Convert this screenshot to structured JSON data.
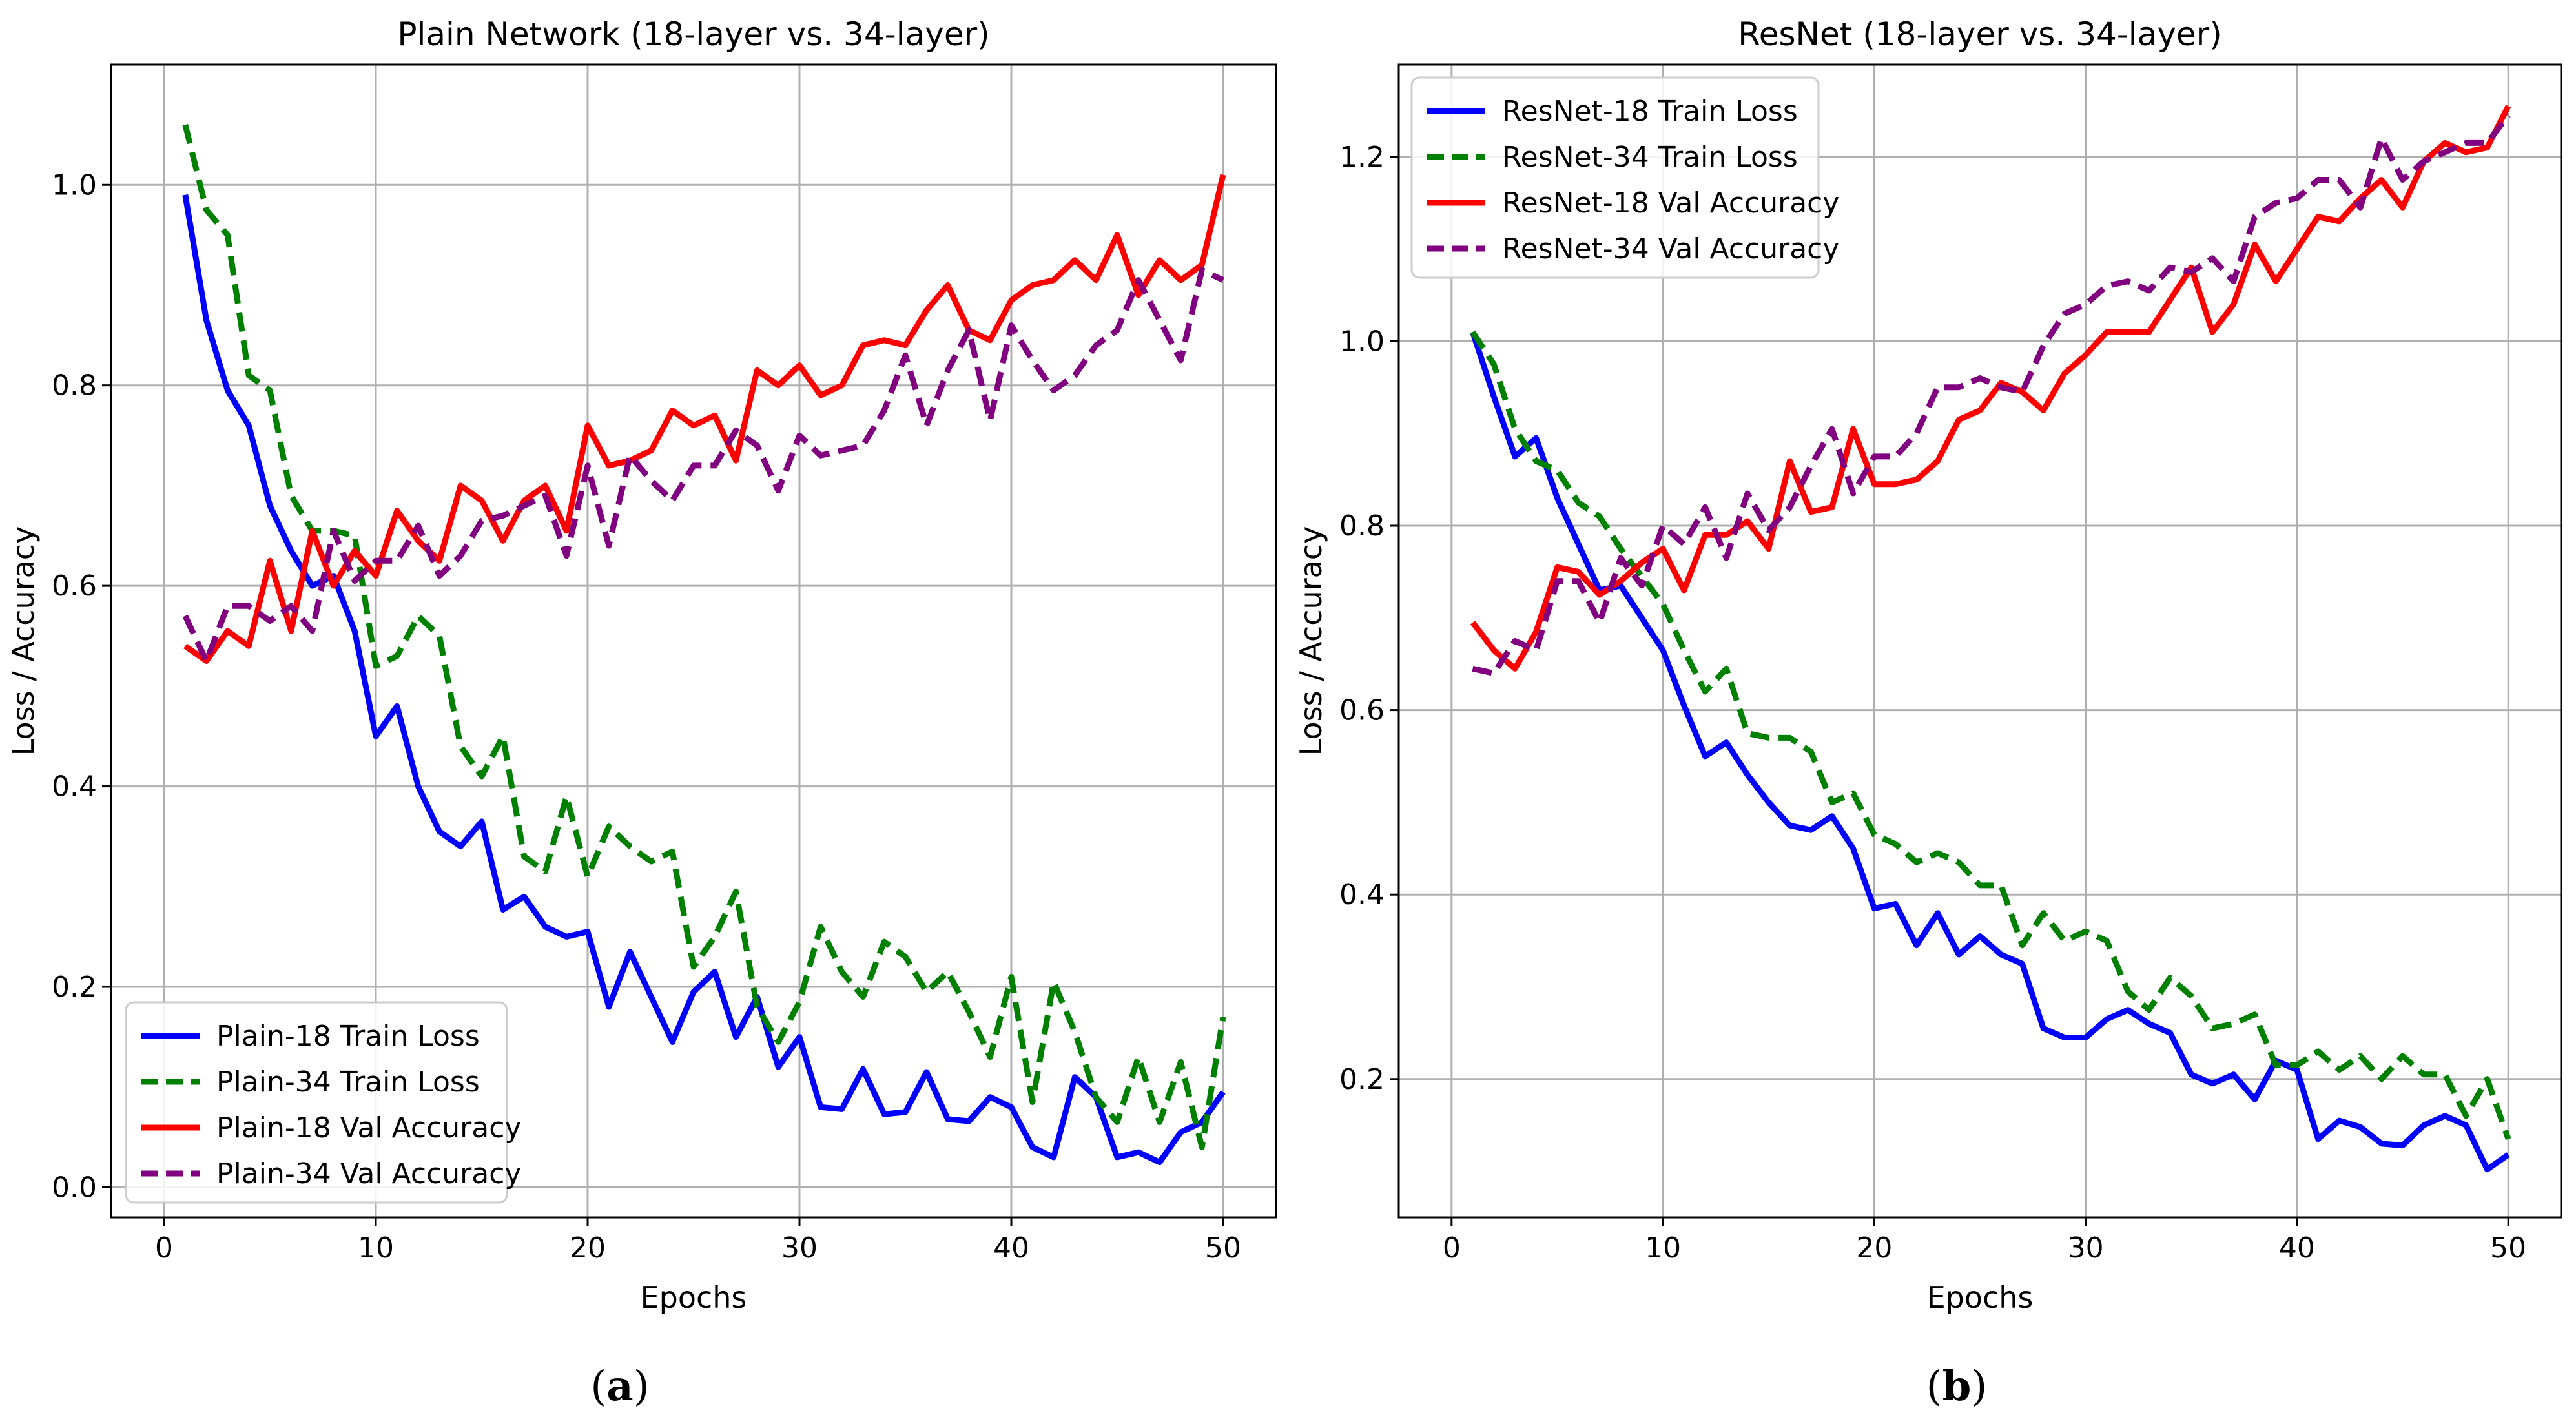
{
  "colors": {
    "plain18_train": "#0000ff",
    "plain34_train": "#008000",
    "plain18_val": "#ff0000",
    "plain34_val": "#800080",
    "grid": "#b0b0b0",
    "axis": "#000000"
  },
  "captions": [
    "a",
    "b"
  ],
  "chart_data": [
    {
      "type": "line",
      "title": "Plain Network (18-layer vs. 34-layer)",
      "xlabel": "Epochs",
      "ylabel": "Loss / Accuracy",
      "xlim": [
        -2.5,
        52.5
      ],
      "ylim": [
        -0.03,
        1.12
      ],
      "xticks": [
        0,
        10,
        20,
        30,
        40,
        50
      ],
      "yticks": [
        0.0,
        0.2,
        0.4,
        0.6,
        0.8,
        1.0
      ],
      "ytick_labels": [
        "0.0",
        "0.2",
        "0.4",
        "0.6",
        "0.8",
        "1.0"
      ],
      "grid": true,
      "legend_position": "lower-left",
      "x": [
        1,
        2,
        3,
        4,
        5,
        6,
        7,
        8,
        9,
        10,
        11,
        12,
        13,
        14,
        15,
        16,
        17,
        18,
        19,
        20,
        21,
        22,
        23,
        24,
        25,
        26,
        27,
        28,
        29,
        30,
        31,
        32,
        33,
        34,
        35,
        36,
        37,
        38,
        39,
        40,
        41,
        42,
        43,
        44,
        45,
        46,
        47,
        48,
        49,
        50
      ],
      "series": [
        {
          "name": "Plain-18 Train Loss",
          "color_key": "plain18_train",
          "dash": false,
          "values": [
            0.99,
            0.865,
            0.795,
            0.76,
            0.68,
            0.635,
            0.6,
            0.61,
            0.555,
            0.45,
            0.48,
            0.4,
            0.355,
            0.34,
            0.365,
            0.277,
            0.29,
            0.26,
            0.25,
            0.255,
            0.18,
            0.235,
            0.19,
            0.145,
            0.195,
            0.215,
            0.15,
            0.19,
            0.12,
            0.15,
            0.08,
            0.078,
            0.118,
            0.073,
            0.075,
            0.115,
            0.068,
            0.066,
            0.09,
            0.08,
            0.04,
            0.03,
            0.11,
            0.09,
            0.03,
            0.035,
            0.025,
            0.055,
            0.065,
            0.095
          ]
        },
        {
          "name": "Plain-34 Train Loss",
          "color_key": "plain34_train",
          "dash": true,
          "values": [
            1.06,
            0.975,
            0.95,
            0.81,
            0.795,
            0.69,
            0.655,
            0.655,
            0.65,
            0.52,
            0.53,
            0.57,
            0.55,
            0.44,
            0.41,
            0.45,
            0.33,
            0.315,
            0.39,
            0.31,
            0.36,
            0.34,
            0.325,
            0.335,
            0.22,
            0.25,
            0.295,
            0.18,
            0.145,
            0.185,
            0.26,
            0.215,
            0.19,
            0.245,
            0.23,
            0.195,
            0.215,
            0.175,
            0.13,
            0.21,
            0.085,
            0.205,
            0.155,
            0.09,
            0.065,
            0.13,
            0.065,
            0.125,
            0.04,
            0.17
          ]
        },
        {
          "name": "Plain-18 Val Accuracy",
          "color_key": "plain18_val",
          "dash": false,
          "values": [
            0.54,
            0.525,
            0.555,
            0.54,
            0.625,
            0.555,
            0.655,
            0.6,
            0.635,
            0.61,
            0.675,
            0.645,
            0.625,
            0.7,
            0.685,
            0.645,
            0.685,
            0.7,
            0.655,
            0.76,
            0.72,
            0.725,
            0.735,
            0.775,
            0.76,
            0.77,
            0.725,
            0.815,
            0.8,
            0.82,
            0.79,
            0.8,
            0.84,
            0.845,
            0.84,
            0.875,
            0.9,
            0.855,
            0.845,
            0.885,
            0.9,
            0.905,
            0.925,
            0.905,
            0.95,
            0.89,
            0.925,
            0.905,
            0.92,
            1.01
          ]
        },
        {
          "name": "Plain-34 Val Accuracy",
          "color_key": "plain34_val",
          "dash": true,
          "values": [
            0.57,
            0.525,
            0.58,
            0.58,
            0.565,
            0.58,
            0.555,
            0.655,
            0.605,
            0.625,
            0.625,
            0.66,
            0.61,
            0.63,
            0.665,
            0.67,
            0.68,
            0.69,
            0.63,
            0.72,
            0.64,
            0.73,
            0.705,
            0.685,
            0.72,
            0.72,
            0.755,
            0.74,
            0.695,
            0.75,
            0.73,
            0.735,
            0.74,
            0.775,
            0.83,
            0.76,
            0.815,
            0.855,
            0.765,
            0.86,
            0.825,
            0.795,
            0.81,
            0.84,
            0.855,
            0.905,
            0.865,
            0.825,
            0.915,
            0.905
          ]
        }
      ]
    },
    {
      "type": "line",
      "title": "ResNet (18-layer vs. 34-layer)",
      "xlabel": "Epochs",
      "ylabel": "Loss / Accuracy",
      "xlim": [
        -2.5,
        52.5
      ],
      "ylim": [
        0.05,
        1.3
      ],
      "xticks": [
        0,
        10,
        20,
        30,
        40,
        50
      ],
      "yticks": [
        0.2,
        0.4,
        0.6,
        0.8,
        1.0,
        1.2
      ],
      "ytick_labels": [
        "0.2",
        "0.4",
        "0.6",
        "0.8",
        "1.0",
        "1.2"
      ],
      "grid": true,
      "legend_position": "upper-left",
      "x": [
        1,
        2,
        3,
        4,
        5,
        6,
        7,
        8,
        9,
        10,
        11,
        12,
        13,
        14,
        15,
        16,
        17,
        18,
        19,
        20,
        21,
        22,
        23,
        24,
        25,
        26,
        27,
        28,
        29,
        30,
        31,
        32,
        33,
        34,
        35,
        36,
        37,
        38,
        39,
        40,
        41,
        42,
        43,
        44,
        45,
        46,
        47,
        48,
        49,
        50
      ],
      "series": [
        {
          "name": "ResNet-18 Train Loss",
          "color_key": "plain18_train",
          "dash": false,
          "values": [
            1.01,
            0.94,
            0.875,
            0.895,
            0.83,
            0.78,
            0.73,
            0.735,
            0.7,
            0.665,
            0.605,
            0.55,
            0.565,
            0.53,
            0.5,
            0.475,
            0.47,
            0.485,
            0.45,
            0.385,
            0.39,
            0.345,
            0.38,
            0.335,
            0.355,
            0.335,
            0.325,
            0.255,
            0.245,
            0.245,
            0.265,
            0.275,
            0.26,
            0.25,
            0.205,
            0.195,
            0.205,
            0.178,
            0.22,
            0.21,
            0.135,
            0.155,
            0.148,
            0.13,
            0.128,
            0.15,
            0.16,
            0.15,
            0.102,
            0.118
          ]
        },
        {
          "name": "ResNet-34 Train Loss",
          "color_key": "plain34_train",
          "dash": true,
          "values": [
            1.01,
            0.975,
            0.905,
            0.87,
            0.86,
            0.825,
            0.81,
            0.775,
            0.745,
            0.715,
            0.665,
            0.62,
            0.645,
            0.575,
            0.57,
            0.57,
            0.555,
            0.5,
            0.51,
            0.465,
            0.455,
            0.435,
            0.445,
            0.435,
            0.41,
            0.41,
            0.345,
            0.38,
            0.35,
            0.36,
            0.35,
            0.295,
            0.275,
            0.31,
            0.29,
            0.255,
            0.26,
            0.27,
            0.215,
            0.215,
            0.23,
            0.21,
            0.225,
            0.2,
            0.225,
            0.205,
            0.205,
            0.16,
            0.2,
            0.135
          ]
        },
        {
          "name": "ResNet-18 Val Accuracy",
          "color_key": "plain18_val",
          "dash": false,
          "values": [
            0.695,
            0.665,
            0.645,
            0.685,
            0.755,
            0.75,
            0.725,
            0.74,
            0.76,
            0.775,
            0.73,
            0.79,
            0.79,
            0.805,
            0.775,
            0.87,
            0.815,
            0.82,
            0.905,
            0.845,
            0.845,
            0.85,
            0.87,
            0.915,
            0.925,
            0.955,
            0.945,
            0.925,
            0.965,
            0.985,
            1.01,
            1.01,
            1.01,
            1.045,
            1.08,
            1.01,
            1.04,
            1.105,
            1.065,
            1.1,
            1.135,
            1.13,
            1.155,
            1.175,
            1.145,
            1.195,
            1.215,
            1.205,
            1.21,
            1.255
          ]
        },
        {
          "name": "ResNet-34 Val Accuracy",
          "color_key": "plain34_val",
          "dash": true,
          "values": [
            0.645,
            0.64,
            0.675,
            0.665,
            0.74,
            0.74,
            0.695,
            0.765,
            0.735,
            0.8,
            0.78,
            0.82,
            0.765,
            0.835,
            0.795,
            0.82,
            0.865,
            0.905,
            0.835,
            0.875,
            0.875,
            0.9,
            0.95,
            0.95,
            0.96,
            0.95,
            0.945,
            0.995,
            1.03,
            1.04,
            1.06,
            1.065,
            1.055,
            1.08,
            1.075,
            1.09,
            1.065,
            1.135,
            1.15,
            1.155,
            1.175,
            1.175,
            1.145,
            1.22,
            1.175,
            1.195,
            1.205,
            1.215,
            1.215,
            1.245
          ]
        }
      ]
    }
  ]
}
